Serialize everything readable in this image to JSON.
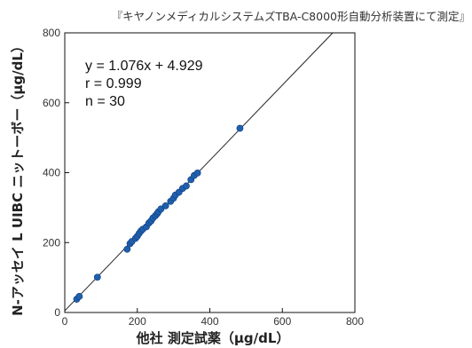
{
  "chart_data": {
    "type": "scatter",
    "title": "『キヤノンメディカルシステムズTBA-C8000形自動分析装置にて測定』",
    "xlabel": "他社 測定試薬（μg/dL）",
    "ylabel": "N-アッセイ L UIBC ニットーボー（μg/dL）",
    "xlim": [
      0,
      800
    ],
    "ylim": [
      0,
      800
    ],
    "x_ticks": [
      "0",
      "200",
      "400",
      "600",
      "800"
    ],
    "y_ticks": [
      "0",
      "200",
      "400",
      "600",
      "800"
    ],
    "grid": false,
    "point_color": "#1f5fae",
    "line_color": "#222222",
    "regression": {
      "slope": 1.076,
      "intercept": 4.929
    },
    "annotations": [
      "y = 1.076x + 4.929",
      "r = 0.999",
      "n = 30"
    ],
    "points": [
      [
        33,
        38
      ],
      [
        40,
        46
      ],
      [
        90,
        101
      ],
      [
        172,
        181
      ],
      [
        180,
        197
      ],
      [
        185,
        203
      ],
      [
        195,
        212
      ],
      [
        200,
        218
      ],
      [
        205,
        226
      ],
      [
        210,
        233
      ],
      [
        215,
        238
      ],
      [
        225,
        245
      ],
      [
        232,
        256
      ],
      [
        238,
        262
      ],
      [
        243,
        270
      ],
      [
        250,
        277
      ],
      [
        255,
        283
      ],
      [
        258,
        288
      ],
      [
        265,
        296
      ],
      [
        278,
        305
      ],
      [
        292,
        318
      ],
      [
        300,
        327
      ],
      [
        305,
        336
      ],
      [
        315,
        344
      ],
      [
        325,
        355
      ],
      [
        335,
        362
      ],
      [
        348,
        380
      ],
      [
        357,
        392
      ],
      [
        366,
        399
      ],
      [
        483,
        527
      ]
    ]
  }
}
